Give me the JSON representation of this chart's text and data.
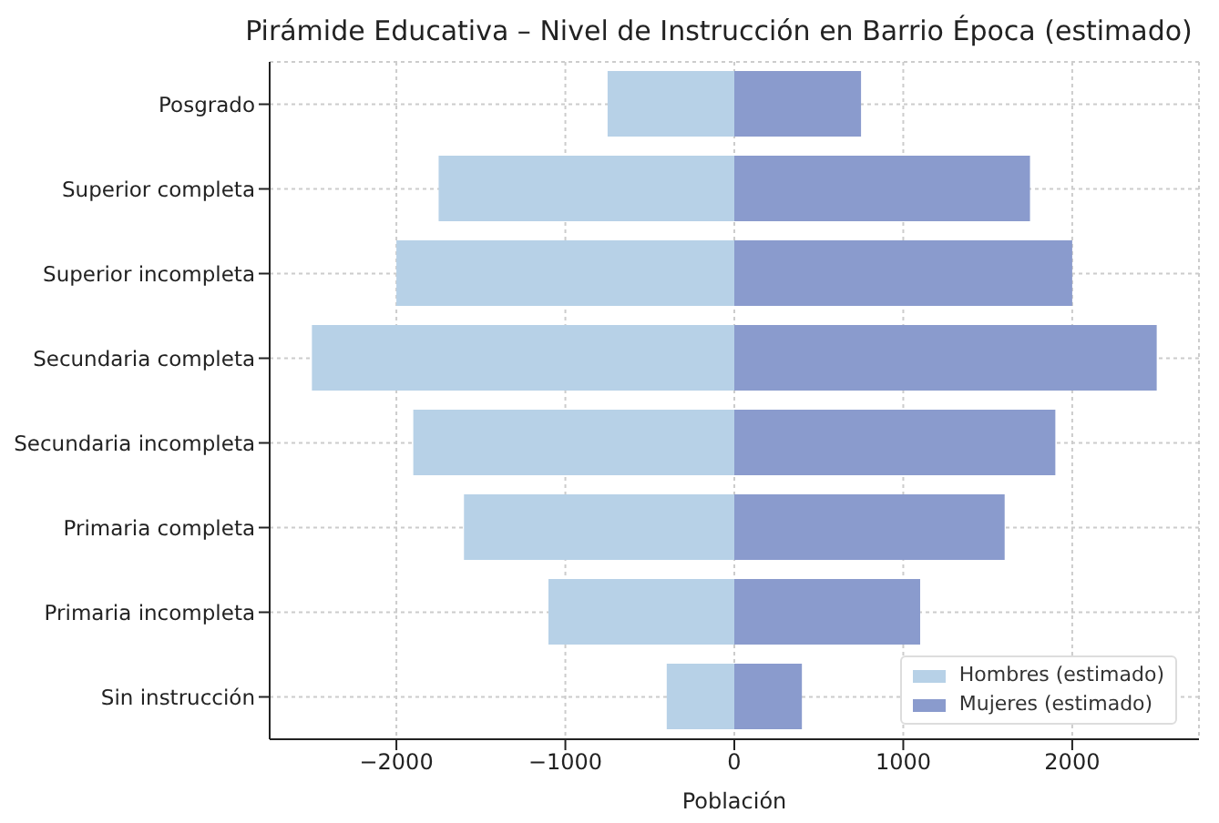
{
  "chart_data": {
    "type": "bar",
    "orientation": "horizontal",
    "stacked": true,
    "title": "Pirámide Educativa – Nivel de Instrucción en Barrio Época (estimado)",
    "xlabel": "Población",
    "categories": [
      "Posgrado",
      "Superior completa",
      "Superior incompleta",
      "Secundaria completa",
      "Secundaria incompleta",
      "Primaria completa",
      "Primaria incompleta",
      "Sin instrucción"
    ],
    "series": [
      {
        "name": "Hombres (estimado)",
        "color": "#b7d1e7",
        "values": [
          -750,
          -1750,
          -2000,
          -2500,
          -1900,
          -1600,
          -1100,
          -400
        ]
      },
      {
        "name": "Mujeres (estimado)",
        "color": "#8a9bcd",
        "values": [
          750,
          1750,
          2000,
          2500,
          1900,
          1600,
          1100,
          400
        ]
      }
    ],
    "xlim": [
      -2750,
      2750
    ],
    "xticks": [
      {
        "value": -2000,
        "label": "−2000"
      },
      {
        "value": -1000,
        "label": "−1000"
      },
      0,
      1000,
      2000
    ],
    "grid": true,
    "legend": "bottom right"
  }
}
